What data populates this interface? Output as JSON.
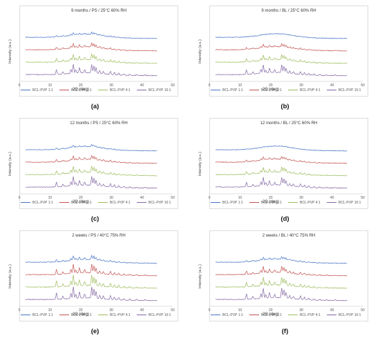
{
  "chart_data": [
    {
      "type": "line",
      "panel_label": "(a)",
      "title": "9 months / PS / 25°C 60% RH",
      "xlabel": "2Θ (deg)",
      "ylabel": "Intensity (a.u.)",
      "xlim": [
        0,
        50
      ],
      "xticks": [
        0,
        10,
        20,
        30,
        40,
        50
      ],
      "pattern": "crystalline-low",
      "series": [
        {
          "name": "BCL-PVP 1:1",
          "color": "#4472C4",
          "offset": 0.0
        },
        {
          "name": "BCL-PVP 2:1",
          "color": "#C0504D",
          "offset": 1.0
        },
        {
          "name": "BCL-PVP 4:1",
          "color": "#9BBB59",
          "offset": 2.0
        },
        {
          "name": "BCL-PVP 10:1",
          "color": "#8064A2",
          "offset": 3.0
        }
      ]
    },
    {
      "type": "line",
      "panel_label": "(b)",
      "title": "9 months / BL / 25°C 60% RH",
      "xlabel": "2Θ (deg)",
      "ylabel": "Intensity (a.u.)",
      "xlim": [
        0,
        50
      ],
      "xticks": [
        0,
        10,
        20,
        30,
        40,
        50
      ],
      "pattern": "amorphous-top",
      "series": [
        {
          "name": "BCL-PVP 1:1",
          "color": "#4472C4",
          "offset": 0.0
        },
        {
          "name": "BCL-PVP 2:1",
          "color": "#C0504D",
          "offset": 1.0
        },
        {
          "name": "BCL-PVP 4:1",
          "color": "#9BBB59",
          "offset": 2.0
        },
        {
          "name": "BCL-PVP 10:1",
          "color": "#8064A2",
          "offset": 3.0
        }
      ]
    },
    {
      "type": "line",
      "panel_label": "(c)",
      "title": "12 months / PS / 25°C 60% RH",
      "xlabel": "2Θ (deg)",
      "ylabel": "Intensity (a.u.)",
      "xlim": [
        0,
        50
      ],
      "xticks": [
        0,
        10,
        20,
        30,
        40,
        50
      ],
      "pattern": "crystalline-low",
      "series": [
        {
          "name": "BCL-PVP 1:1",
          "color": "#4472C4",
          "offset": 0.0
        },
        {
          "name": "BCL-PVP 2:1",
          "color": "#C0504D",
          "offset": 1.0
        },
        {
          "name": "BCL-PVP 4:1",
          "color": "#9BBB59",
          "offset": 2.0
        },
        {
          "name": "BCL-PVP 10:1",
          "color": "#8064A2",
          "offset": 3.0
        }
      ]
    },
    {
      "type": "line",
      "panel_label": "(d)",
      "title": "12 months / BL / 25°C 60% RH",
      "xlabel": "2Θ (deg)",
      "ylabel": "Intensity (a.u.)",
      "xlim": [
        0,
        50
      ],
      "xticks": [
        0,
        10,
        20,
        30,
        40,
        50
      ],
      "pattern": "amorphous-top",
      "series": [
        {
          "name": "BCL-PVP 1:1",
          "color": "#4472C4",
          "offset": 0.0
        },
        {
          "name": "BCL-PVP 2:1",
          "color": "#C0504D",
          "offset": 1.0
        },
        {
          "name": "BCL-PVP 4:1",
          "color": "#9BBB59",
          "offset": 2.0
        },
        {
          "name": "BCL-PVP 10:1",
          "color": "#8064A2",
          "offset": 3.0
        }
      ]
    },
    {
      "type": "line",
      "panel_label": "(e)",
      "title": "2 weeks / PS / 40°C 75% RH",
      "xlabel": "2Θ (deg)",
      "ylabel": "Intensity (a.u.)",
      "xlim": [
        0,
        50
      ],
      "xticks": [
        0,
        10,
        20,
        30,
        40,
        50
      ],
      "pattern": "crystalline-high",
      "series": [
        {
          "name": "BCL-PVP 1:1",
          "color": "#4472C4",
          "offset": 0.0
        },
        {
          "name": "BCL-PVP 2:1",
          "color": "#C0504D",
          "offset": 1.0
        },
        {
          "name": "BCL-PVP 4:1",
          "color": "#9BBB59",
          "offset": 2.0
        },
        {
          "name": "BCL-PVP 10:1",
          "color": "#8064A2",
          "offset": 3.0
        }
      ]
    },
    {
      "type": "line",
      "panel_label": "(f)",
      "title": "2 weeks / BL / 40°C 75% RH",
      "xlabel": "2Θ (deg)",
      "ylabel": "Intensity (a.u.)",
      "xlim": [
        0,
        50
      ],
      "xticks": [
        0,
        10,
        20,
        30,
        40,
        50
      ],
      "pattern": "crystalline-mid",
      "series": [
        {
          "name": "BCL-PVP 1:1",
          "color": "#4472C4",
          "offset": 0.0
        },
        {
          "name": "BCL-PVP 2:1",
          "color": "#C0504D",
          "offset": 1.0
        },
        {
          "name": "BCL-PVP 4:1",
          "color": "#9BBB59",
          "offset": 2.0
        },
        {
          "name": "BCL-PVP 10:1",
          "color": "#8064A2",
          "offset": 3.0
        }
      ]
    }
  ]
}
